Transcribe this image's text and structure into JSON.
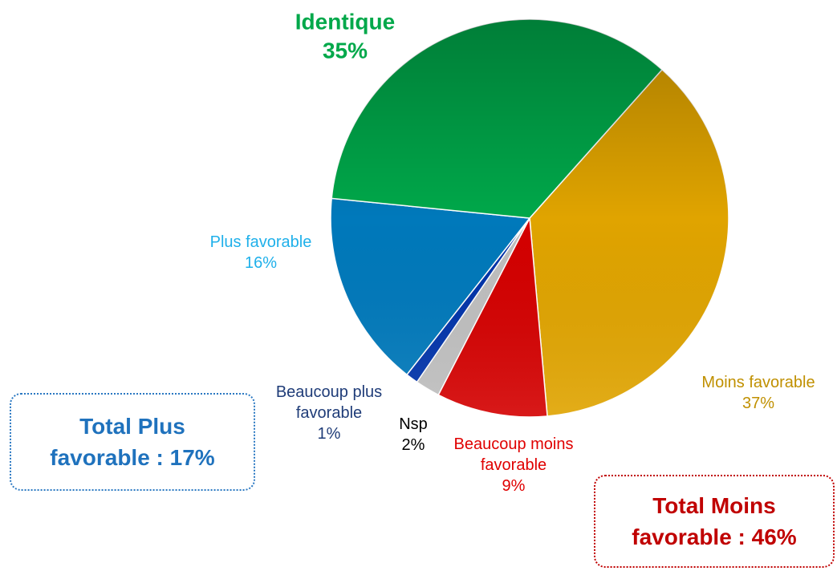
{
  "chart_data": {
    "type": "pie",
    "categories": [
      "Moins favorable",
      "Beaucoup moins favorable",
      "Nsp",
      "Beaucoup plus favorable",
      "Plus favorable",
      "Identique"
    ],
    "values": [
      37,
      9,
      2,
      1,
      16,
      35
    ],
    "value_labels": [
      "37%",
      "9%",
      "2%",
      "1%",
      "16%",
      "35%"
    ],
    "colors": [
      "#e0a400",
      "#d40000",
      "#bfbfbf",
      "#0033aa",
      "#0079bb",
      "#00a84a"
    ],
    "label_colors": [
      "#c09000",
      "#e00000",
      "#000000",
      "#1f3c78",
      "#1fb0ea",
      "#00a84a"
    ],
    "annotations": [
      "Total Plus favorable : 17%",
      "Total Moins favorable : 46%"
    ]
  }
}
